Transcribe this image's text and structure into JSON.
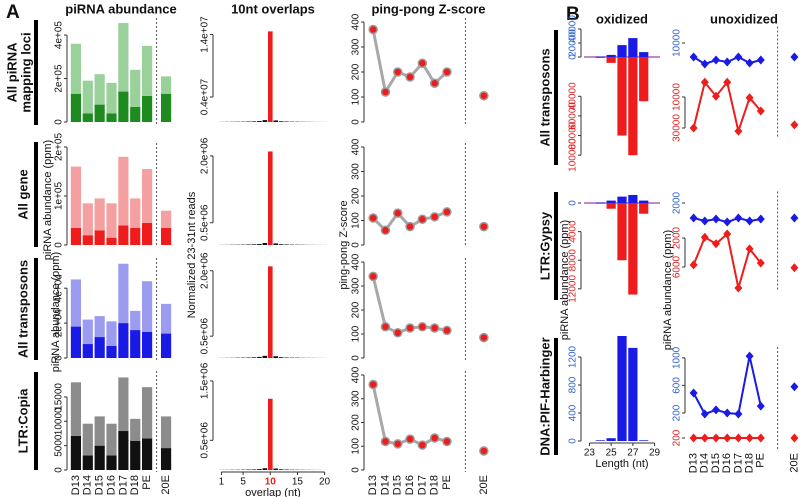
{
  "panel_labels": [
    "A",
    "B"
  ],
  "chart_data": [
    {
      "type": "bar",
      "title": "piRNA abundance",
      "row_label": [
        "All piRNA",
        "mapping loci"
      ],
      "stacked": true,
      "separator_after": 7,
      "ylim": [
        0,
        460000
      ],
      "yticks": [
        0,
        {
          "value": 200000,
          "label": "2e+05"
        },
        {
          "value": 400000,
          "label": "4e+05"
        }
      ],
      "series": [
        {
          "color": "#1f8a1f",
          "values": [
            130000,
            40000,
            80000,
            40000,
            140000,
            70000,
            120000,
            130000
          ]
        },
        {
          "color": "#9ad09a",
          "values": [
            230000,
            150000,
            140000,
            140000,
            315000,
            170000,
            230000,
            80000
          ]
        }
      ]
    },
    {
      "type": "bar",
      "title": "10nt overlaps",
      "color": "#111111",
      "highlight_x": 10,
      "highlight_color": "#ee1c1c",
      "x": [
        1,
        2,
        3,
        4,
        5,
        6,
        7,
        8,
        9,
        10,
        11,
        12,
        13,
        14,
        15,
        16,
        17,
        18,
        19,
        20
      ],
      "xlim": [
        0,
        21
      ],
      "values": [
        20000,
        30000,
        40000,
        50000,
        60000,
        80000,
        100000,
        150000,
        300000,
        14500000,
        250000,
        120000,
        80000,
        60000,
        50000,
        40000,
        30000,
        20000,
        15000,
        10000
      ],
      "ylim": [
        0,
        16000000
      ],
      "yticks": [
        {
          "value": 4000000,
          "label": "0.4e+07"
        },
        {
          "value": 14000000,
          "label": "1.4e+07"
        }
      ]
    },
    {
      "type": "line",
      "title": "ping-pong Z-score",
      "separator_after": 7,
      "ylim": [
        0,
        400
      ],
      "yticks": [
        0,
        100,
        200,
        300,
        400
      ],
      "series": [
        {
          "color": "#ee1c1c",
          "line_color": "#a8a8a8",
          "marker": "circle",
          "values": [
            370,
            120,
            200,
            180,
            235,
            155,
            200,
            105
          ]
        }
      ]
    },
    {
      "type": "bar",
      "row_label": "All gene",
      "ylabel": "piRNA abundance (ppm)",
      "stacked": true,
      "separator_after": 7,
      "ylim": [
        0,
        200000
      ],
      "yticks": [
        0,
        {
          "value": 100000,
          "label": "1e+05"
        },
        {
          "value": 200000,
          "label": "2e+05"
        }
      ],
      "series": [
        {
          "color": "#ee1c1c",
          "values": [
            35000,
            20000,
            30000,
            15000,
            40000,
            35000,
            45000,
            35000
          ]
        },
        {
          "color": "#f4a0a0",
          "values": [
            125000,
            65000,
            65000,
            70000,
            140000,
            60000,
            110000,
            35000
          ]
        }
      ]
    },
    {
      "type": "bar",
      "ylabel": "Normalized 23-31nt reads",
      "color": "#111111",
      "highlight_x": 10,
      "highlight_color": "#ee1c1c",
      "x": [
        1,
        2,
        3,
        4,
        5,
        6,
        7,
        8,
        9,
        10,
        11,
        12,
        13,
        14,
        15,
        16,
        17,
        18,
        19,
        20
      ],
      "xlim": [
        0,
        21
      ],
      "values": [
        3000,
        4000,
        6000,
        7000,
        9000,
        12000,
        15000,
        22000,
        45000,
        2100000,
        36000,
        17000,
        12000,
        9000,
        7000,
        6000,
        4000,
        3000,
        2000,
        1500
      ],
      "ylim": [
        0,
        2200000
      ],
      "yticks": [
        {
          "value": 500000,
          "label": "0.5e+06"
        },
        {
          "value": 2000000,
          "label": "2.0e+06"
        }
      ]
    },
    {
      "type": "line",
      "ylabel": "ping-pong Z-score",
      "separator_after": 7,
      "ylim": [
        0,
        400
      ],
      "yticks": [
        0,
        100,
        200,
        300,
        400
      ],
      "series": [
        {
          "color": "#ee1c1c",
          "line_color": "#a8a8a8",
          "marker": "circle",
          "values": [
            110,
            60,
            130,
            75,
            105,
            115,
            135,
            75
          ]
        }
      ]
    },
    {
      "type": "bar",
      "row_label": "All transposons",
      "ylabel": "piRNA abundance (ppm)",
      "stacked": true,
      "separator_after": 7,
      "ylim": [
        0,
        55000
      ],
      "yticks": [
        0,
        {
          "value": 20000,
          "label": "2e+04"
        },
        {
          "value": 40000,
          "label": "4e+04"
        }
      ],
      "series": [
        {
          "color": "#1a1ae6",
          "values": [
            18000,
            8000,
            12000,
            7000,
            20000,
            16000,
            15000,
            14000
          ]
        },
        {
          "color": "#9b9bf0",
          "values": [
            27000,
            14000,
            12000,
            14000,
            34000,
            11000,
            29000,
            17000
          ]
        }
      ]
    },
    {
      "type": "bar",
      "color": "#111111",
      "highlight_x": 10,
      "highlight_color": "#ee1c1c",
      "x": [
        1,
        2,
        3,
        4,
        5,
        6,
        7,
        8,
        9,
        10,
        11,
        12,
        13,
        14,
        15,
        16,
        17,
        18,
        19,
        20
      ],
      "xlim": [
        0,
        21
      ],
      "values": [
        2500,
        4000,
        5000,
        8000,
        9000,
        11000,
        16000,
        25000,
        50000,
        2100000,
        40000,
        18000,
        11000,
        9000,
        8000,
        5000,
        4000,
        3000,
        2000,
        1500
      ],
      "ylim": [
        0,
        2200000
      ],
      "yticks": [
        {
          "value": 500000,
          "label": "0.5e+06"
        },
        {
          "value": 2000000,
          "label": "2.0e+06"
        }
      ]
    },
    {
      "type": "line",
      "separator_after": 7,
      "ylim": [
        0,
        400
      ],
      "yticks": [
        0,
        100,
        200,
        300,
        400
      ],
      "series": [
        {
          "color": "#ee1c1c",
          "line_color": "#a8a8a8",
          "marker": "circle",
          "values": [
            340,
            130,
            105,
            125,
            130,
            125,
            115,
            85
          ]
        }
      ]
    },
    {
      "type": "bar",
      "row_label": "LTR:Copia",
      "stacked": true,
      "separator_after": 7,
      "categories": [
        "D13",
        "D14",
        "D15",
        "D16",
        "D17",
        "D18",
        "PE",
        "20E"
      ],
      "ylim": [
        0,
        19500
      ],
      "yticks": [
        0,
        5000,
        10000,
        15000
      ],
      "series": [
        {
          "color": "#111111",
          "values": [
            7000,
            3000,
            5000,
            3000,
            8000,
            6000,
            6500,
            4500
          ]
        },
        {
          "color": "#8c8c8c",
          "values": [
            11000,
            6500,
            6000,
            6500,
            11000,
            4500,
            10500,
            6500
          ]
        }
      ]
    },
    {
      "type": "bar",
      "xlabel": "overlap (nt)",
      "color": "#111111",
      "highlight_x": 10,
      "highlight_color": "#ee1c1c",
      "x": [
        1,
        2,
        3,
        4,
        5,
        6,
        7,
        8,
        9,
        10,
        11,
        12,
        13,
        14,
        15,
        16,
        17,
        18,
        19,
        20
      ],
      "xlim": [
        0,
        21
      ],
      "xticks": [
        1,
        5,
        10,
        15,
        20
      ],
      "values": [
        2000,
        3000,
        4000,
        5000,
        6000,
        8000,
        10000,
        15000,
        30000,
        1200000,
        25000,
        12000,
        8000,
        6000,
        5000,
        4000,
        3000,
        2000,
        1500,
        1000
      ],
      "ylim": [
        0,
        1600000
      ],
      "yticks": [
        {
          "value": 500000,
          "label": "0.5e+06"
        },
        {
          "value": 1500000,
          "label": "1.5e+06"
        }
      ]
    },
    {
      "type": "line",
      "separator_after": 7,
      "categories": [
        "D13",
        "D14",
        "D15",
        "D16",
        "D17",
        "D18",
        "PE",
        "20E"
      ],
      "ylim": [
        0,
        400
      ],
      "yticks": [
        0,
        100,
        200,
        300,
        400
      ],
      "series": [
        {
          "color": "#ee1c1c",
          "line_color": "#a8a8a8",
          "marker": "circle",
          "values": [
            360,
            120,
            110,
            130,
            105,
            135,
            120,
            80
          ]
        }
      ]
    },
    {
      "type": "bar",
      "title": "oxidized",
      "row_label": "All transposons",
      "x": [
        23,
        24,
        25,
        26,
        27,
        28,
        29
      ],
      "xlim": [
        22.5,
        29.5
      ],
      "ylim": [
        0,
        45000
      ],
      "yticks": [
        0,
        20000,
        40000
      ],
      "ytick_color": "#2f62d0",
      "y2lim": [
        0,
        110000
      ],
      "y2ticks": [
        40000,
        60000,
        80000,
        100000
      ],
      "y2tick_color": "#e02020",
      "y2_inverted": true,
      "series": [
        {
          "color": "#1a1ae6",
          "values": [
            0,
            500,
            3000,
            17000,
            27000,
            7000,
            0
          ]
        },
        {
          "color": "#ee1c1c",
          "axis": "y2",
          "values": [
            0,
            1000,
            6000,
            80000,
            100000,
            45000,
            0
          ]
        }
      ]
    },
    {
      "type": "line",
      "title": "unoxidized",
      "separator_after": 7,
      "ylim": [
        0,
        15000
      ],
      "yticks": [
        10000
      ],
      "ytick_color": "#2f62d0",
      "y2lim": [
        0,
        35000
      ],
      "y2ticks": [
        10000,
        30000
      ],
      "y2tick_color": "#e02020",
      "y2_inverted": true,
      "series": [
        {
          "color": "#1a1ae6",
          "marker": "diamond",
          "values": [
            4400,
            1600,
            3200,
            2400,
            4400,
            2000,
            3200,
            4400
          ]
        },
        {
          "color": "#ee1c1c",
          "marker": "diamond",
          "axis": "y2",
          "values": [
            30000,
            500,
            9500,
            500,
            32000,
            10500,
            19000,
            28000
          ]
        }
      ]
    },
    {
      "type": "bar",
      "row_label": "LTR:Gypsy",
      "ylabel": "piRNA abundance (ppm)",
      "x": [
        23,
        24,
        25,
        26,
        27,
        28,
        29
      ],
      "xlim": [
        22.5,
        29.5
      ],
      "ylim": [
        0,
        1500
      ],
      "yticks": [
        0
      ],
      "ytick_color": "#2f62d0",
      "y2lim": [
        0,
        13000
      ],
      "y2ticks": [
        4000,
        8000,
        12000
      ],
      "y2tick_color": "#e02020",
      "y2_inverted": true,
      "series": [
        {
          "color": "#1a1ae6",
          "values": [
            0,
            50,
            300,
            800,
            1000,
            300,
            0
          ]
        },
        {
          "color": "#ee1c1c",
          "axis": "y2",
          "values": [
            0,
            100,
            800,
            8000,
            12800,
            1500,
            0
          ]
        }
      ]
    },
    {
      "type": "line",
      "ylabel": "piRNA abundance (ppm)",
      "separator_after": 7,
      "ylim": [
        0,
        2500
      ],
      "yticks": [
        2000
      ],
      "ytick_color": "#2f62d0",
      "y2lim": [
        0,
        9000
      ],
      "y2ticks": [
        2000,
        6000
      ],
      "y2tick_color": "#e02020",
      "y2_inverted": true,
      "series": [
        {
          "color": "#1a1ae6",
          "marker": "diamond",
          "values": [
            1000,
            800,
            930,
            730,
            1000,
            800,
            930,
            1000
          ]
        },
        {
          "color": "#ee1c1c",
          "marker": "diamond",
          "axis": "y2",
          "values": [
            5700,
            1900,
            2800,
            1450,
            8900,
            3500,
            5450,
            6100
          ]
        }
      ]
    },
    {
      "type": "bar",
      "row_label": "DNA:PIF-Harbinger",
      "xlabel": "Length (nt)",
      "x": [
        23,
        24,
        25,
        26,
        27,
        28,
        29
      ],
      "xlim": [
        22.5,
        29.5
      ],
      "xticks": [
        23,
        25,
        27,
        29
      ],
      "ylim": [
        0,
        1600
      ],
      "yticks": [
        0,
        400,
        800,
        1200
      ],
      "ytick_color": "#2f62d0",
      "series": [
        {
          "color": "#1a1ae6",
          "values": [
            0,
            10,
            40,
            1500,
            1330,
            10,
            0
          ]
        }
      ]
    },
    {
      "type": "line",
      "separator_after": 7,
      "categories": [
        "D13",
        "D14",
        "D15",
        "D16",
        "D17",
        "D18",
        "PE",
        "20E"
      ],
      "ylim": [
        0,
        1100
      ],
      "yticks": [
        200,
        600,
        1000
      ],
      "ytick_color": "#2f62d0",
      "y2lim": [
        0,
        400
      ],
      "y2ticks": [
        200
      ],
      "y2tick_color": "#e02020",
      "y2_inverted": true,
      "series": [
        {
          "color": "#1a1ae6",
          "marker": "diamond",
          "values": [
            490,
            185,
            245,
            200,
            185,
            1025,
            300,
            580
          ]
        },
        {
          "color": "#ee1c1c",
          "marker": "diamond",
          "axis": "y2",
          "values": [
            200,
            200,
            200,
            200,
            200,
            200,
            200,
            200
          ]
        }
      ]
    }
  ]
}
